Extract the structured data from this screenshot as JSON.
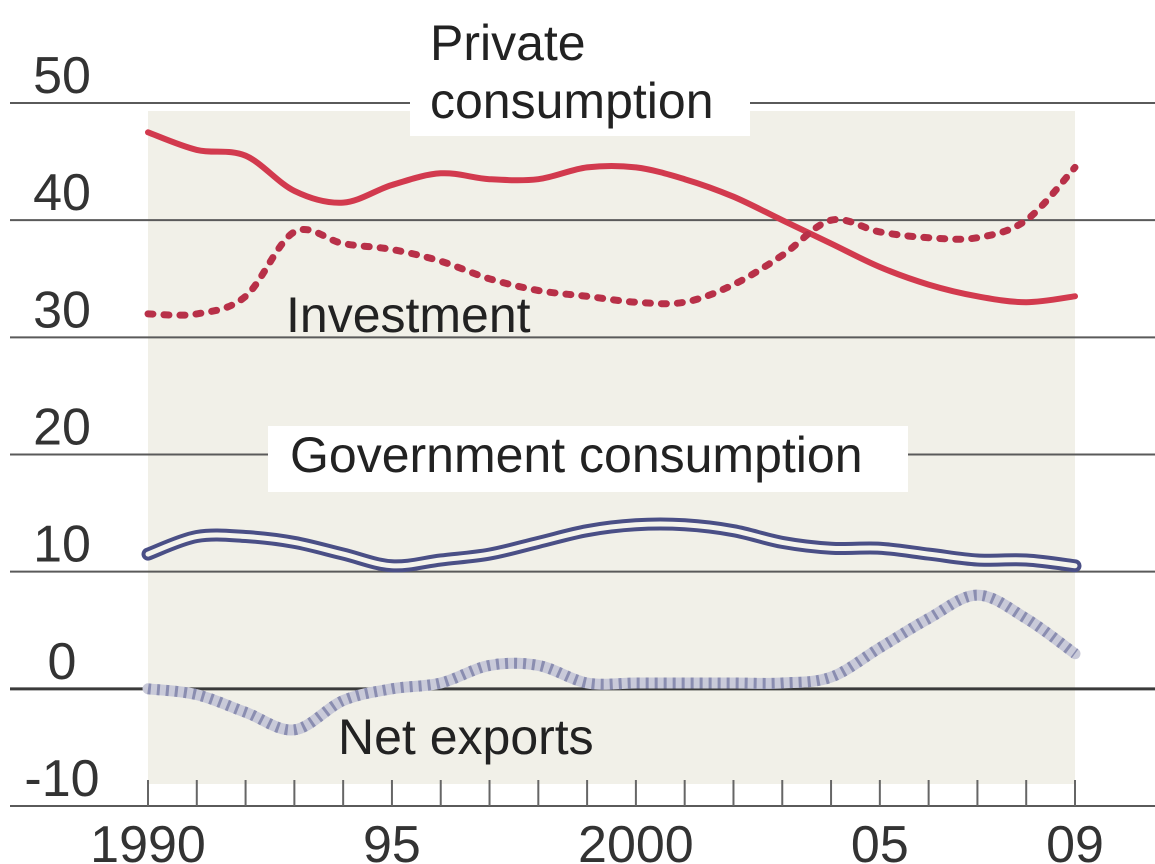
{
  "chart_data": {
    "type": "line",
    "title": "",
    "xlabel": "",
    "ylabel": "",
    "ylim": [
      -10,
      50
    ],
    "xlim": [
      1990,
      2009
    ],
    "y_ticks": [
      {
        "value": 50,
        "label": "50"
      },
      {
        "value": 40,
        "label": "40"
      },
      {
        "value": 30,
        "label": "30"
      },
      {
        "value": 20,
        "label": "20"
      },
      {
        "value": 10,
        "label": "10"
      },
      {
        "value": 0,
        "label": "0"
      },
      {
        "value": -10,
        "label": "-10"
      }
    ],
    "x_ticks": [
      {
        "value": 1990,
        "label": "1990"
      },
      {
        "value": 1995,
        "label": "95"
      },
      {
        "value": 2000,
        "label": "2000"
      },
      {
        "value": 2005,
        "label": "05"
      },
      {
        "value": 2009,
        "label": "09"
      }
    ],
    "grid": "horizontal",
    "shaded_range": [
      1990,
      2009
    ],
    "x": [
      1990,
      1991,
      1992,
      1993,
      1994,
      1995,
      1996,
      1997,
      1998,
      1999,
      2000,
      2001,
      2002,
      2003,
      2004,
      2005,
      2006,
      2007,
      2008,
      2009
    ],
    "series": [
      {
        "key": "private",
        "name": "Private consumption",
        "color": "#d23a4e",
        "style": "solid",
        "values": [
          47.5,
          46,
          45.5,
          42.5,
          41.5,
          43,
          44,
          43.5,
          43.5,
          44.5,
          44.5,
          43.5,
          42,
          40,
          38,
          36,
          34.5,
          33.5,
          33,
          33.5
        ]
      },
      {
        "key": "investment",
        "name": "Investment",
        "color": "#b83048",
        "style": "dotted",
        "values": [
          32,
          32,
          33.5,
          39,
          38,
          37.5,
          36.5,
          35,
          34,
          33.5,
          33,
          33,
          34.5,
          37,
          40,
          39,
          38.5,
          38.5,
          40,
          44.5
        ]
      },
      {
        "key": "government",
        "name": "Government consumption",
        "color": "#4a4f86",
        "style": "double",
        "values": [
          11.5,
          13,
          13,
          12.5,
          11.5,
          10.5,
          11,
          11.5,
          12.5,
          13.5,
          14,
          14,
          13.5,
          12.5,
          12,
          12,
          11.5,
          11,
          11,
          10.5
        ]
      },
      {
        "key": "net_exports",
        "name": "Net exports",
        "color": "#8a8db0",
        "style": "hatched",
        "values": [
          0,
          -0.5,
          -2,
          -3.5,
          -1,
          0,
          0.5,
          2,
          2,
          0.5,
          0.5,
          0.5,
          0.5,
          0.5,
          1,
          3.5,
          6,
          8,
          6,
          3
        ]
      }
    ],
    "series_labels": [
      {
        "key": "private",
        "text": "Private",
        "position": "top-center"
      },
      {
        "key": "private",
        "text": "consumption",
        "position": "top-center"
      },
      {
        "key": "investment",
        "text": "Investment",
        "position": "center-left"
      },
      {
        "key": "government",
        "text": "Government consumption",
        "position": "center"
      },
      {
        "key": "net_exports",
        "text": "Net exports",
        "position": "bottom-center"
      }
    ]
  }
}
